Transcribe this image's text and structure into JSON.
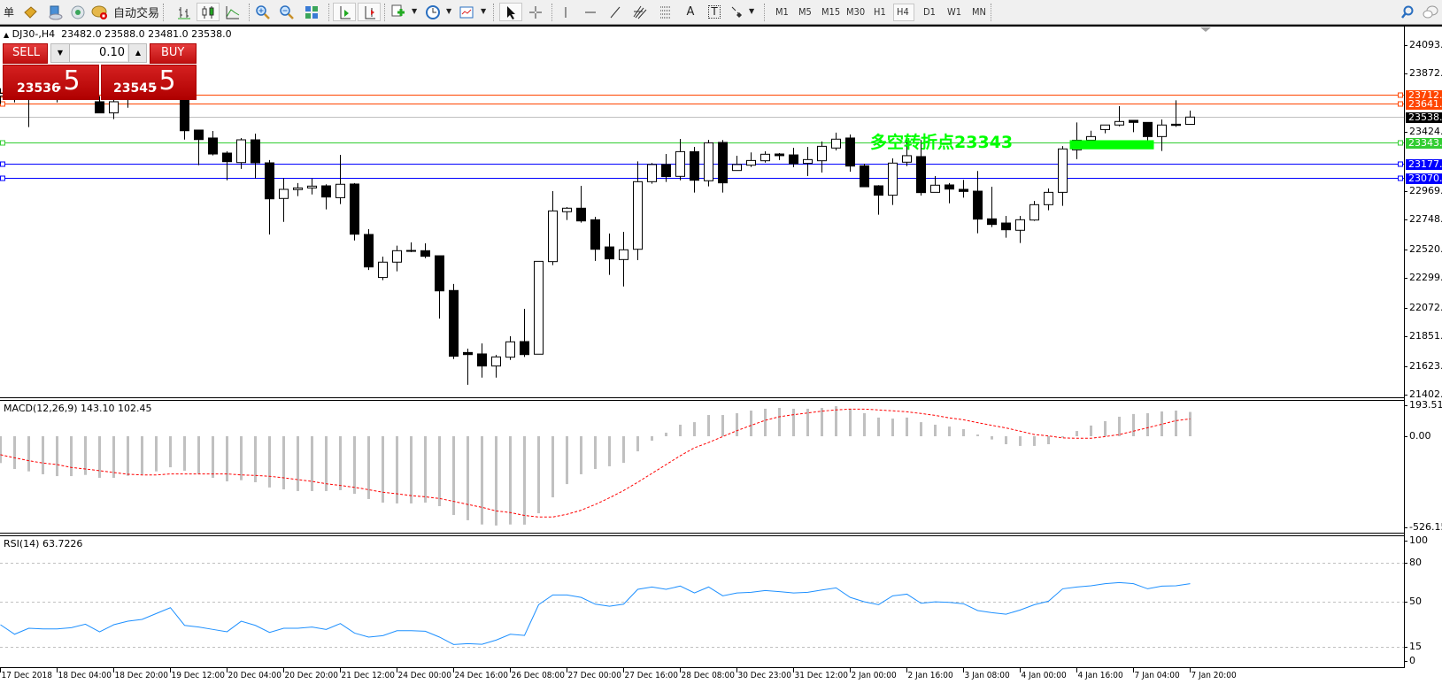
{
  "toolbar": {
    "menu_fragment": "单",
    "auto_trading_label": "自动交易",
    "text_tool_glyph": "A",
    "label_tool_glyph": "T",
    "icons": [
      "navigator-icon",
      "cloud-server-icon",
      "signals-icon",
      "auto-trading-icon",
      "bar-chart-icon",
      "candlestick-icon",
      "line-chart-icon",
      "zoom-in-icon",
      "zoom-out-icon",
      "tile-windows-icon",
      "autoscroll-icon",
      "chart-shift-icon",
      "indicators-icon",
      "periods-icon",
      "templates-icon",
      "cursor-icon",
      "crosshair-icon",
      "vertical-line-icon",
      "horizontal-line-icon",
      "trendline-icon",
      "fibonacci-fan-icon",
      "fibonacci-retracement-icon",
      "text-icon",
      "text-label-icon",
      "arrows-icon",
      "search-icon",
      "chat-icon"
    ],
    "timeframes": [
      "M1",
      "M5",
      "M15",
      "M30",
      "H1",
      "H4",
      "D1",
      "W1",
      "MN"
    ],
    "active_timeframe": "H4"
  },
  "chart_header": {
    "symbol": "DJ30-,H4",
    "open": "23482.0",
    "high": "23588.0",
    "low": "23481.0",
    "close": "23538.0"
  },
  "trade_panel": {
    "sell_label": "SELL",
    "buy_label": "BUY",
    "lot": "0.10",
    "sell_price_main": "23536",
    "sell_price_frac": ".5",
    "buy_price_main": "23545",
    "buy_price_frac": ".5",
    "color": "#d21c1c"
  },
  "annotation": {
    "text": "多空转折点23343",
    "color": "#00ff00"
  },
  "chart_data": [
    {
      "type": "candlestick",
      "series_fields": [
        "open",
        "high",
        "low",
        "close"
      ],
      "candles": [
        [
          23700,
          23760,
          23640,
          23720
        ],
        [
          23720,
          23780,
          23651,
          23690
        ],
        [
          23690,
          23800,
          23461,
          23740
        ],
        [
          23740,
          23820,
          23680,
          23760
        ],
        [
          23760,
          23830,
          23651,
          23700
        ],
        [
          23700,
          23790,
          23670,
          23760
        ],
        [
          23760,
          23840,
          23700,
          23720
        ],
        [
          23656,
          23700,
          23570,
          23570
        ],
        [
          23570,
          23700,
          23522,
          23656
        ],
        [
          23690,
          23760,
          23610,
          23720
        ],
        [
          23720,
          23800,
          23680,
          23780
        ],
        [
          23780,
          23830,
          23700,
          23740
        ],
        [
          23740,
          23790,
          23690,
          23700
        ],
        [
          23700,
          23750,
          23365,
          23433
        ],
        [
          23438,
          23438,
          23168,
          23365
        ],
        [
          23377,
          23431,
          23243,
          23254
        ],
        [
          23261,
          23275,
          23052,
          23195
        ],
        [
          23188,
          23377,
          23139,
          23363
        ],
        [
          23363,
          23411,
          23066,
          23186
        ],
        [
          23186,
          23207,
          22635,
          22909
        ],
        [
          22912,
          23068,
          22732,
          22982
        ],
        [
          22980,
          23030,
          22930,
          22993
        ],
        [
          22993,
          23066,
          22943,
          23007
        ],
        [
          23009,
          23021,
          22828,
          22923
        ],
        [
          22918,
          23247,
          22869,
          23021
        ],
        [
          23023,
          23030,
          22589,
          22637
        ],
        [
          22635,
          22676,
          22362,
          22385
        ],
        [
          22304,
          22465,
          22283,
          22422
        ],
        [
          22422,
          22549,
          22351,
          22510
        ],
        [
          22510,
          22574,
          22499,
          22512
        ],
        [
          22510,
          22567,
          22453,
          22467
        ],
        [
          22471,
          22471,
          21988,
          22201
        ],
        [
          22204,
          22254,
          21677,
          21698
        ],
        [
          21727,
          21757,
          21478,
          21711
        ],
        [
          21716,
          21797,
          21534,
          21623
        ],
        [
          21623,
          21709,
          21534,
          21693
        ],
        [
          21691,
          21852,
          21670,
          21809
        ],
        [
          21811,
          22063,
          21693,
          21711
        ],
        [
          21714,
          22430,
          21712,
          22428
        ],
        [
          22426,
          22968,
          22399,
          22816
        ],
        [
          22810,
          22846,
          22746,
          22837
        ],
        [
          22837,
          23009,
          22726,
          22739
        ],
        [
          22748,
          22771,
          22431,
          22521
        ],
        [
          22539,
          22642,
          22324,
          22447
        ],
        [
          22442,
          22655,
          22235,
          22517
        ],
        [
          22521,
          23197,
          22437,
          23041
        ],
        [
          23041,
          23184,
          23025,
          23173
        ],
        [
          23173,
          23254,
          23039,
          23080
        ],
        [
          23082,
          23370,
          23052,
          23272
        ],
        [
          23272,
          23309,
          22957,
          23052
        ],
        [
          23048,
          23363,
          23005,
          23340
        ],
        [
          23343,
          23361,
          22957,
          23032
        ],
        [
          23127,
          23241,
          23127,
          23173
        ],
        [
          23168,
          23266,
          23154,
          23204
        ],
        [
          23202,
          23275,
          23188,
          23252
        ],
        [
          23254,
          23261,
          23207,
          23241
        ],
        [
          23247,
          23302,
          23152,
          23179
        ],
        [
          23182,
          23309,
          23084,
          23211
        ],
        [
          23202,
          23350,
          23111,
          23313
        ],
        [
          23300,
          23418,
          23281,
          23368
        ],
        [
          23377,
          23404,
          23118,
          23161
        ],
        [
          23163,
          23179,
          23002,
          23002
        ],
        [
          23009,
          23014,
          22787,
          22937
        ],
        [
          22937,
          23220,
          22862,
          23184
        ],
        [
          23191,
          23390,
          23161,
          23241
        ],
        [
          23234,
          23361,
          22934,
          22957
        ],
        [
          22959,
          23084,
          22959,
          23014
        ],
        [
          23016,
          23030,
          22875,
          22984
        ],
        [
          22982,
          23055,
          22918,
          22966
        ],
        [
          22968,
          23123,
          22644,
          22753
        ],
        [
          22755,
          23002,
          22692,
          22712
        ],
        [
          22723,
          22778,
          22610,
          22671
        ],
        [
          22667,
          22778,
          22569,
          22748
        ],
        [
          22746,
          22893,
          22739,
          22864
        ],
        [
          22864,
          22989,
          22821,
          22959
        ],
        [
          22959,
          23315,
          22855,
          23293
        ],
        [
          23286,
          23497,
          23214,
          23360
        ],
        [
          23360,
          23433,
          23340,
          23388
        ],
        [
          23442,
          23477,
          23413,
          23477
        ],
        [
          23477,
          23622,
          23467,
          23504
        ],
        [
          23513,
          23515,
          23422,
          23497
        ],
        [
          23497,
          23497,
          23349,
          23388
        ],
        [
          23388,
          23520,
          23277,
          23477
        ],
        [
          23483,
          23667,
          23463,
          23474
        ],
        [
          23482,
          23588,
          23481,
          23538
        ]
      ],
      "x_tick_labels": [
        "17 Dec 2018",
        "18 Dec 04:00",
        "18 Dec 20:00",
        "19 Dec 12:00",
        "20 Dec 04:00",
        "20 Dec 20:00",
        "21 Dec 12:00",
        "24 Dec 00:00",
        "24 Dec 16:00",
        "26 Dec 08:00",
        "27 Dec 00:00",
        "27 Dec 16:00",
        "28 Dec 08:00",
        "30 Dec 23:00",
        "31 Dec 12:00",
        "2 Jan 00:00",
        "2 Jan 16:00",
        "3 Jan 08:00",
        "4 Jan 00:00",
        "4 Jan 16:00",
        "7 Jan 04:00",
        "7 Jan 20:00"
      ],
      "x_tick_every": 4,
      "y_ticks": [
        "24093.5",
        "23872.5",
        "23424.0",
        "22969.0",
        "22748.0",
        "22520.5",
        "22299.5",
        "22072.0",
        "21851.0",
        "21623.5",
        "21402.5"
      ],
      "ylim": [
        21402.5,
        24093.5
      ],
      "levels": [
        {
          "value": "23712.5",
          "color": "#ff4500",
          "kind": "horizontal-line"
        },
        {
          "value": "23641.2",
          "color": "#ff4500",
          "kind": "horizontal-line"
        },
        {
          "value": "23538.0",
          "color": "#000000",
          "kind": "bid-line",
          "line_color": "#c0c0c0"
        },
        {
          "value": "23343.8",
          "color": "#32cd32",
          "kind": "horizontal-line"
        },
        {
          "value": "23177.4",
          "color": "#0000ff",
          "kind": "horizontal-line"
        },
        {
          "value": "23070.3",
          "color": "#0000ff",
          "kind": "horizontal-line"
        }
      ],
      "highlight_zone": {
        "from_candle": 76,
        "to_candle": 81,
        "price_top": 23360,
        "price_bottom": 23290,
        "color": "#00ff00"
      },
      "bull_color": "#ffffff",
      "bear_color": "#000000"
    },
    {
      "type": "bar+line",
      "title": "MACD(12,26,9) 143.10 102.45",
      "y_ticks": [
        "193.51",
        "0.00",
        "-526.15"
      ],
      "ylim": [
        -526.15,
        193.51
      ],
      "histogram_color": "#c0c0c0",
      "signal_color": "#ff0000",
      "histogram": [
        -158,
        -193,
        -207,
        -224,
        -235,
        -235,
        -228,
        -245,
        -245,
        -233,
        -224,
        -207,
        -183,
        -203,
        -221,
        -245,
        -266,
        -259,
        -271,
        -302,
        -313,
        -323,
        -323,
        -323,
        -318,
        -339,
        -370,
        -391,
        -396,
        -396,
        -391,
        -412,
        -464,
        -495,
        -520,
        -526,
        -520,
        -521,
        -454,
        -360,
        -282,
        -224,
        -193,
        -177,
        -157,
        -89,
        -26,
        21,
        68,
        83,
        125,
        125,
        136,
        151,
        162,
        167,
        162,
        162,
        167,
        177,
        162,
        136,
        110,
        104,
        110,
        83,
        68,
        57,
        42,
        10,
        -19,
        -47,
        -57,
        -57,
        -47,
        -7,
        31,
        63,
        89,
        115,
        131,
        136,
        146,
        151,
        143.1
      ],
      "signal": [
        -109,
        -127,
        -144,
        -158,
        -167,
        -184,
        -193,
        -203,
        -214,
        -224,
        -228,
        -228,
        -222,
        -222,
        -222,
        -222,
        -222,
        -228,
        -231,
        -236,
        -245,
        -256,
        -266,
        -280,
        -290,
        -301,
        -315,
        -330,
        -339,
        -350,
        -357,
        -367,
        -384,
        -402,
        -419,
        -440,
        -450,
        -467,
        -476,
        -476,
        -460,
        -436,
        -402,
        -363,
        -320,
        -271,
        -219,
        -167,
        -115,
        -68,
        -37,
        -2,
        33,
        64,
        94,
        115,
        127,
        137,
        148,
        155,
        160,
        160,
        155,
        150,
        144,
        134,
        123,
        108,
        97,
        80,
        64,
        49,
        30,
        10,
        2,
        -10,
        -12,
        -12,
        -2,
        10,
        30,
        50,
        71,
        92,
        102.45
      ]
    },
    {
      "type": "line",
      "title": "RSI(14) 63.7226",
      "y_ticks": [
        "100",
        "80",
        "50",
        "15",
        "0"
      ],
      "levels": [
        80,
        50,
        15
      ],
      "ylim": [
        0,
        100
      ],
      "color": "#1e90ff",
      "values": [
        32.2,
        24.9,
        29.5,
        29.0,
        29.0,
        29.9,
        32.6,
        26.7,
        32.2,
        34.9,
        36.3,
        40.8,
        45.3,
        31.7,
        30.4,
        28.6,
        26.8,
        34.9,
        31.7,
        26.3,
        29.5,
        29.5,
        30.4,
        28.6,
        33.1,
        25.8,
        22.7,
        23.8,
        27.6,
        27.6,
        27.2,
        22.7,
        17.0,
        17.7,
        17.2,
        20.4,
        24.9,
        24.0,
        47.6,
        55.1,
        55.1,
        53.2,
        48.0,
        46.4,
        48.0,
        59.4,
        61.2,
        59.4,
        61.9,
        56.6,
        61.2,
        54.4,
        56.6,
        57.1,
        58.5,
        57.6,
        56.6,
        57.1,
        58.9,
        60.5,
        53.2,
        49.8,
        47.6,
        54.4,
        55.7,
        48.7,
        49.8,
        49.4,
        48.3,
        43.1,
        41.5,
        40.3,
        43.5,
        47.6,
        50.3,
        59.8,
        61.2,
        62.1,
        63.7,
        64.6,
        63.7,
        59.8,
        61.9,
        62.1,
        63.7226
      ]
    }
  ]
}
